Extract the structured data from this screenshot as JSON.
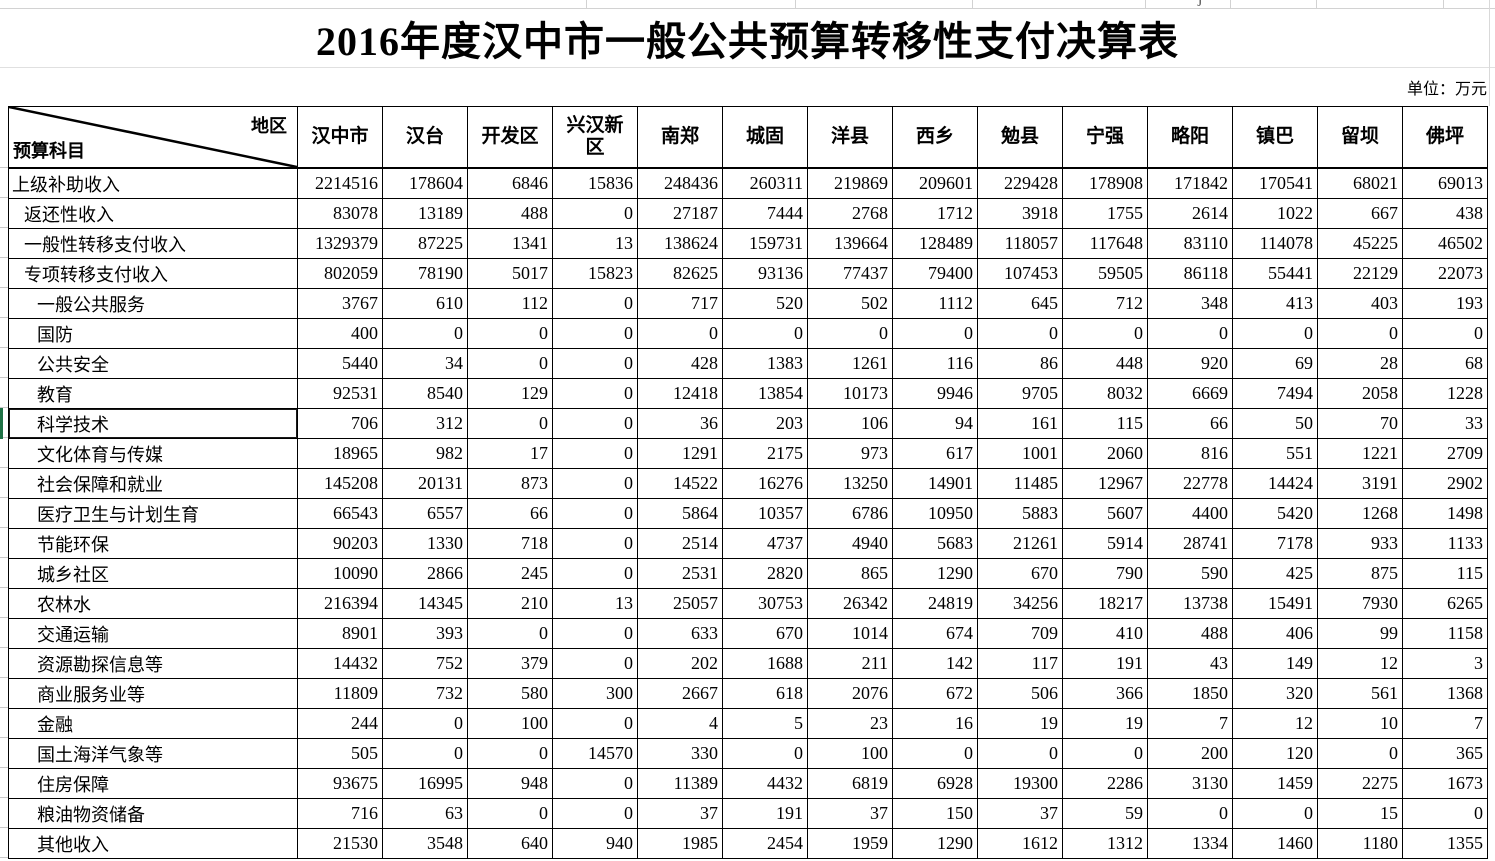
{
  "title": "2016年度汉中市一般公共预算转移性支付决算表",
  "page": {
    "unit_label": "单位：万元",
    "clipped_text": "j"
  },
  "selection": {
    "row": "科学技术",
    "color": "#1e7145"
  },
  "colors": {
    "grid_line": "#d2d2d2",
    "cell_border": "#000000",
    "selection_green": "#1e7145"
  },
  "table": {
    "corner": {
      "top_right": "地区",
      "bottom_left": "预算科目"
    },
    "columns": [
      "汉中市",
      "汉台",
      "开发区",
      "兴汉新区",
      "南郑",
      "城固",
      "洋县",
      "西乡",
      "勉县",
      "宁强",
      "略阳",
      "镇巴",
      "留坝",
      "佛坪"
    ],
    "rows": [
      {
        "label": "上级补助收入",
        "indent": 0,
        "values": [
          2214516,
          178604,
          6846,
          15836,
          248436,
          260311,
          219869,
          209601,
          229428,
          178908,
          171842,
          170541,
          68021,
          69013
        ]
      },
      {
        "label": "返还性收入",
        "indent": 1,
        "values": [
          83078,
          13189,
          488,
          0,
          27187,
          7444,
          2768,
          1712,
          3918,
          1755,
          2614,
          1022,
          667,
          438
        ]
      },
      {
        "label": "一般性转移支付收入",
        "indent": 1,
        "values": [
          1329379,
          87225,
          1341,
          13,
          138624,
          159731,
          139664,
          128489,
          118057,
          117648,
          83110,
          114078,
          45225,
          46502
        ]
      },
      {
        "label": "专项转移支付收入",
        "indent": 1,
        "values": [
          802059,
          78190,
          5017,
          15823,
          82625,
          93136,
          77437,
          79400,
          107453,
          59505,
          86118,
          55441,
          22129,
          22073
        ]
      },
      {
        "label": "一般公共服务",
        "indent": 2,
        "values": [
          3767,
          610,
          112,
          0,
          717,
          520,
          502,
          1112,
          645,
          712,
          348,
          413,
          403,
          193
        ]
      },
      {
        "label": "国防",
        "indent": 2,
        "values": [
          400,
          0,
          0,
          0,
          0,
          0,
          0,
          0,
          0,
          0,
          0,
          0,
          0,
          0
        ]
      },
      {
        "label": "公共安全",
        "indent": 2,
        "values": [
          5440,
          34,
          0,
          0,
          428,
          1383,
          1261,
          116,
          86,
          448,
          920,
          69,
          28,
          68
        ]
      },
      {
        "label": "教育",
        "indent": 2,
        "values": [
          92531,
          8540,
          129,
          0,
          12418,
          13854,
          10173,
          9946,
          9705,
          8032,
          6669,
          7494,
          2058,
          1228
        ]
      },
      {
        "label": "科学技术",
        "indent": 2,
        "values": [
          706,
          312,
          0,
          0,
          36,
          203,
          106,
          94,
          161,
          115,
          66,
          50,
          70,
          33
        ]
      },
      {
        "label": "文化体育与传媒",
        "indent": 2,
        "values": [
          18965,
          982,
          17,
          0,
          1291,
          2175,
          973,
          617,
          1001,
          2060,
          816,
          551,
          1221,
          2709
        ]
      },
      {
        "label": "社会保障和就业",
        "indent": 2,
        "values": [
          145208,
          20131,
          873,
          0,
          14522,
          16276,
          13250,
          14901,
          11485,
          12967,
          22778,
          14424,
          3191,
          2902
        ]
      },
      {
        "label": "医疗卫生与计划生育",
        "indent": 2,
        "values": [
          66543,
          6557,
          66,
          0,
          5864,
          10357,
          6786,
          10950,
          5883,
          5607,
          4400,
          5420,
          1268,
          1498
        ]
      },
      {
        "label": "节能环保",
        "indent": 2,
        "values": [
          90203,
          1330,
          718,
          0,
          2514,
          4737,
          4940,
          5683,
          21261,
          5914,
          28741,
          7178,
          933,
          1133
        ]
      },
      {
        "label": "城乡社区",
        "indent": 2,
        "values": [
          10090,
          2866,
          245,
          0,
          2531,
          2820,
          865,
          1290,
          670,
          790,
          590,
          425,
          875,
          115
        ]
      },
      {
        "label": "农林水",
        "indent": 2,
        "values": [
          216394,
          14345,
          210,
          13,
          25057,
          30753,
          26342,
          24819,
          34256,
          18217,
          13738,
          15491,
          7930,
          6265
        ]
      },
      {
        "label": "交通运输",
        "indent": 2,
        "values": [
          8901,
          393,
          0,
          0,
          633,
          670,
          1014,
          674,
          709,
          410,
          488,
          406,
          99,
          1158
        ]
      },
      {
        "label": "资源勘探信息等",
        "indent": 2,
        "values": [
          14432,
          752,
          379,
          0,
          202,
          1688,
          211,
          142,
          117,
          191,
          43,
          149,
          12,
          3
        ]
      },
      {
        "label": "商业服务业等",
        "indent": 2,
        "values": [
          11809,
          732,
          580,
          300,
          2667,
          618,
          2076,
          672,
          506,
          366,
          1850,
          320,
          561,
          1368
        ]
      },
      {
        "label": "金融",
        "indent": 2,
        "values": [
          244,
          0,
          100,
          0,
          4,
          5,
          23,
          16,
          19,
          19,
          7,
          12,
          10,
          7
        ]
      },
      {
        "label": "国土海洋气象等",
        "indent": 2,
        "values": [
          505,
          0,
          0,
          14570,
          330,
          0,
          100,
          0,
          0,
          0,
          200,
          120,
          0,
          365
        ]
      },
      {
        "label": "住房保障",
        "indent": 2,
        "values": [
          93675,
          16995,
          948,
          0,
          11389,
          4432,
          6819,
          6928,
          19300,
          2286,
          3130,
          1459,
          2275,
          1673
        ]
      },
      {
        "label": "粮油物资储备",
        "indent": 2,
        "values": [
          716,
          63,
          0,
          0,
          37,
          191,
          37,
          150,
          37,
          59,
          0,
          0,
          15,
          0
        ]
      },
      {
        "label": "其他收入",
        "indent": 2,
        "values": [
          21530,
          3548,
          640,
          940,
          1985,
          2454,
          1959,
          1290,
          1612,
          1312,
          1334,
          1460,
          1180,
          1355
        ]
      }
    ]
  }
}
